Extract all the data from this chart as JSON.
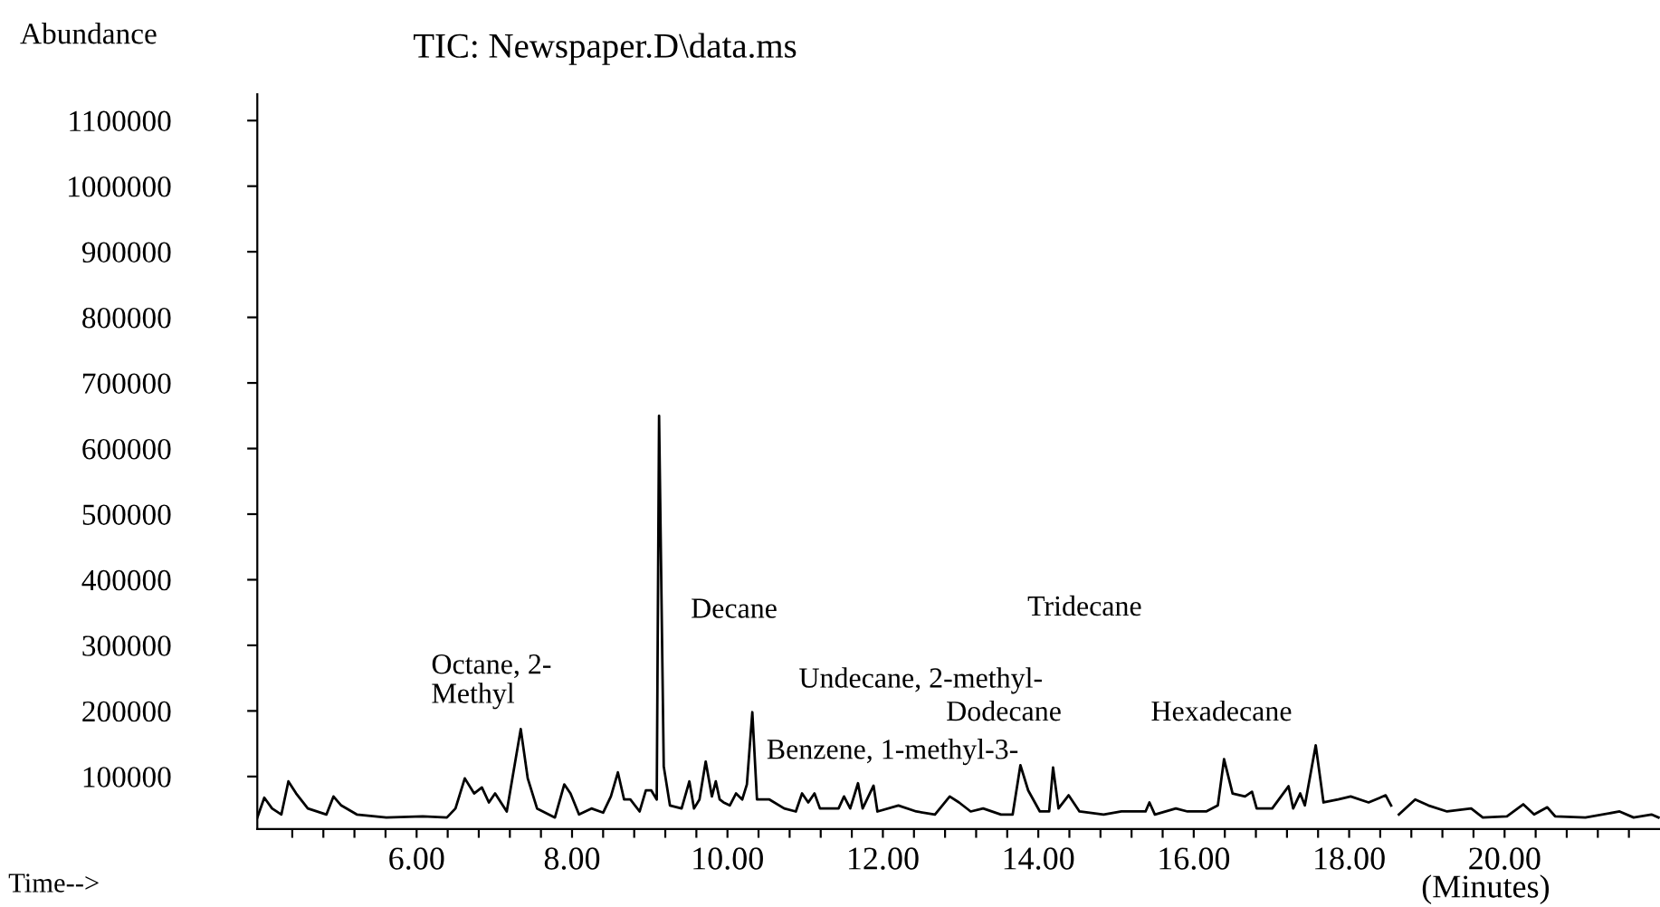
{
  "chart_data": {
    "type": "line",
    "title": "TIC: Newspaper.D\\data.ms",
    "xlabel": "Time-->",
    "ylabel": "Abundance",
    "x": [
      3.95,
      4.04,
      4.14,
      4.26,
      4.35,
      4.45,
      4.6,
      4.84,
      4.93,
      5.03,
      5.23,
      5.61,
      6.08,
      6.39,
      6.5,
      6.62,
      6.74,
      6.84,
      6.93,
      7.01,
      7.16,
      7.34,
      7.43,
      7.55,
      7.78,
      7.9,
      7.98,
      8.09,
      8.25,
      8.4,
      8.5,
      8.59,
      8.67,
      8.75,
      8.87,
      8.95,
      9.02,
      9.09,
      9.12,
      9.18,
      9.26,
      9.41,
      9.51,
      9.57,
      9.64,
      9.72,
      9.8,
      9.85,
      9.9,
      9.95,
      10.03,
      10.11,
      10.19,
      10.25,
      10.32,
      10.38,
      10.54,
      10.73,
      10.88,
      10.96,
      11.04,
      11.12,
      11.19,
      11.43,
      11.5,
      11.58,
      11.68,
      11.74,
      11.88,
      11.93,
      12.2,
      12.43,
      12.67,
      12.86,
      12.98,
      13.13,
      13.29,
      13.52,
      13.67,
      13.77,
      13.87,
      14.02,
      14.14,
      14.19,
      14.26,
      14.39,
      14.53,
      14.84,
      15.07,
      15.38,
      15.43,
      15.5,
      15.77,
      15.92,
      16.16,
      16.31,
      16.39,
      16.5,
      16.66,
      16.75,
      16.81,
      17.01,
      17.22,
      17.28,
      17.37,
      17.43,
      17.57,
      17.67,
      17.86,
      18.02,
      18.25,
      18.47,
      18.54,
      18.59,
      18.64,
      18.85,
      19.02,
      19.26,
      19.57,
      19.72,
      20.03,
      20.24,
      20.38,
      20.55,
      20.65,
      21.04,
      21.48,
      21.66,
      21.89,
      21.98
    ],
    "series": [
      {
        "color": "#000000",
        "values": [
          37500,
          67800,
          51300,
          42100,
          92600,
          74200,
          51300,
          42100,
          69600,
          55900,
          42100,
          37500,
          39400,
          37500,
          51300,
          97200,
          74200,
          83400,
          60500,
          74200,
          46700,
          172400,
          97200,
          51300,
          37500,
          88000,
          74200,
          42100,
          51300,
          44900,
          69600,
          106300,
          65000,
          65000,
          46700,
          78800,
          78800,
          65000,
          650000,
          115500,
          55900,
          51300,
          92600,
          51300,
          65000,
          122800,
          69600,
          92600,
          65000,
          60500,
          55900,
          74200,
          65000,
          88000,
          198100,
          65000,
          65000,
          51300,
          46700,
          74200,
          60500,
          74200,
          51300,
          51300,
          69600,
          51300,
          89800,
          51300,
          86100,
          46700,
          55900,
          46700,
          42100,
          69600,
          60500,
          46700,
          51300,
          42100,
          42100,
          117300,
          78800,
          46700,
          46700,
          113700,
          51300,
          71400,
          46700,
          42100,
          46700,
          46700,
          60500,
          42100,
          51300,
          46700,
          46700,
          55900,
          126500,
          74200,
          69600,
          76900,
          51300,
          51300,
          85200,
          51300,
          74200,
          55900,
          147600,
          60500,
          65000,
          69600,
          60500,
          71400,
          55900,
          null,
          42100,
          65000,
          55900,
          46700,
          51300,
          37500,
          39400,
          57700,
          42100,
          53100,
          39400,
          37500,
          46700,
          37500,
          42100,
          37500
        ]
      }
    ],
    "xlim": [
      3.95,
      22.0
    ],
    "ylim": [
      20000,
      1140000
    ],
    "xticks": [
      {
        "value": 4.4,
        "label": null
      },
      {
        "value": 4.8,
        "label": null
      },
      {
        "value": 5.2,
        "label": null
      },
      {
        "value": 5.6,
        "label": null
      },
      {
        "value": 6,
        "label": "6.00"
      },
      {
        "value": 6.4,
        "label": null
      },
      {
        "value": 6.8,
        "label": null
      },
      {
        "value": 7.2,
        "label": null
      },
      {
        "value": 7.6,
        "label": null
      },
      {
        "value": 8,
        "label": "8.00"
      },
      {
        "value": 8.4,
        "label": null
      },
      {
        "value": 8.8,
        "label": null
      },
      {
        "value": 9.2,
        "label": null
      },
      {
        "value": 9.6,
        "label": null
      },
      {
        "value": 10,
        "label": "10.00"
      },
      {
        "value": 10.4,
        "label": null
      },
      {
        "value": 10.8,
        "label": null
      },
      {
        "value": 11.2,
        "label": null
      },
      {
        "value": 11.6,
        "label": null
      },
      {
        "value": 12,
        "label": "12.00"
      },
      {
        "value": 12.4,
        "label": null
      },
      {
        "value": 12.8,
        "label": null
      },
      {
        "value": 13.2,
        "label": null
      },
      {
        "value": 13.6,
        "label": null
      },
      {
        "value": 14,
        "label": "14.00"
      },
      {
        "value": 14.4,
        "label": null
      },
      {
        "value": 14.8,
        "label": null
      },
      {
        "value": 15.2,
        "label": null
      },
      {
        "value": 15.6,
        "label": null
      },
      {
        "value": 16,
        "label": "16.00"
      },
      {
        "value": 16.4,
        "label": null
      },
      {
        "value": 16.8,
        "label": null
      },
      {
        "value": 17.2,
        "label": null
      },
      {
        "value": 17.6,
        "label": null
      },
      {
        "value": 18,
        "label": "18.00"
      },
      {
        "value": 18.4,
        "label": null
      },
      {
        "value": 18.8,
        "label": null
      },
      {
        "value": 19.2,
        "label": null
      },
      {
        "value": 19.6,
        "label": null
      },
      {
        "value": 20,
        "label": "20.00"
      },
      {
        "value": 20.4,
        "label": null
      },
      {
        "value": 20.8,
        "label": null
      },
      {
        "value": 21.2,
        "label": null
      },
      {
        "value": 21.6,
        "label": null
      }
    ],
    "yticks": [
      100000,
      200000,
      300000,
      400000,
      500000,
      600000,
      700000,
      800000,
      900000,
      1000000,
      1100000
    ],
    "annotations": [
      "Octane, 2-\nMethyl",
      "Decane",
      "Undecane, 2-methyl-",
      "Dodecane",
      "Benzene, 1-methyl-3-",
      "Tridecane",
      "Hexadecane",
      "(Minutes)"
    ],
    "grid": false,
    "legend": false,
    "marker": "none",
    "line_style": "solid"
  }
}
